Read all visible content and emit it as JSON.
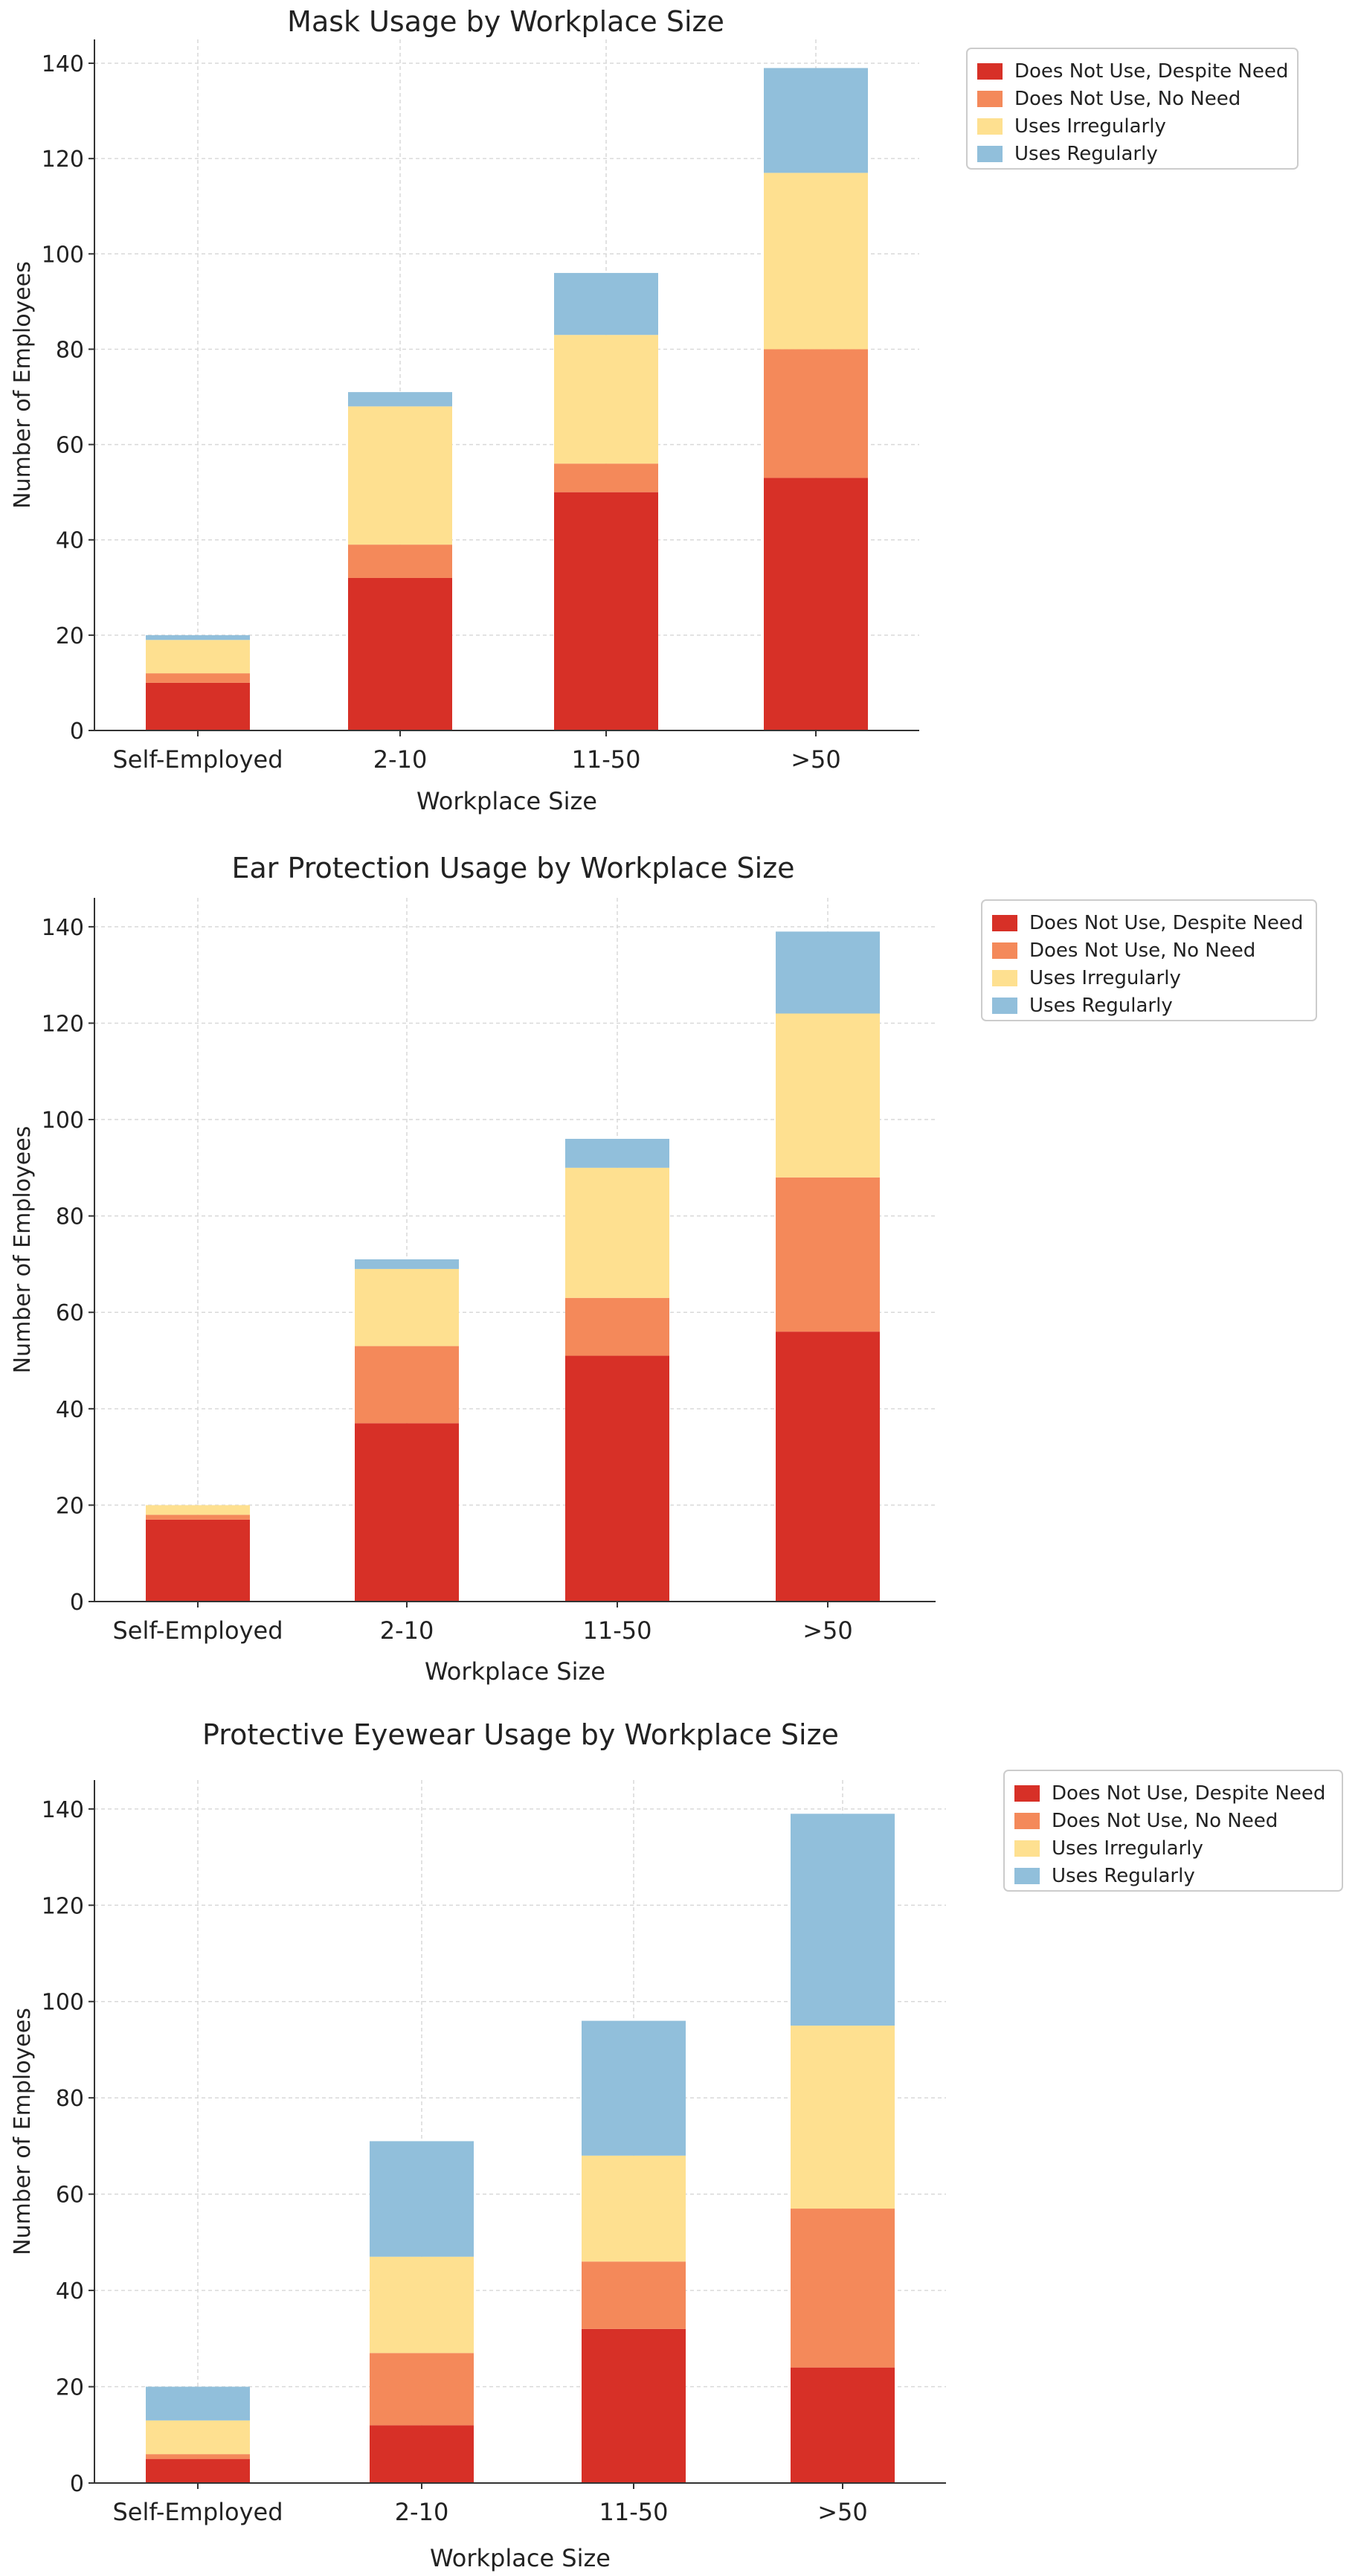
{
  "colors": {
    "does_not_use_despite_need": "#d73027",
    "does_not_use_no_need": "#f4895a",
    "uses_irregularly": "#fee090",
    "uses_regularly": "#91bfdb",
    "grid": "#d9d9d9",
    "axis": "#333333"
  },
  "chart_data": [
    {
      "type": "bar",
      "stacked": true,
      "title": "Mask Usage by Workplace Size",
      "xlabel": "Workplace Size",
      "ylabel": "Number of Employees",
      "categories": [
        "Self-Employed",
        "2-10",
        "11-50",
        ">50"
      ],
      "ylim": [
        0,
        145
      ],
      "yticks": [
        0,
        20,
        40,
        60,
        80,
        100,
        120,
        140
      ],
      "grid": true,
      "legend_position": "upper-right outside",
      "series": [
        {
          "name": "Does Not Use, Despite Need",
          "color_key": "does_not_use_despite_need",
          "values": [
            10,
            32,
            50,
            53
          ]
        },
        {
          "name": "Does Not Use, No Need",
          "color_key": "does_not_use_no_need",
          "values": [
            2,
            7,
            6,
            27
          ]
        },
        {
          "name": "Uses Irregularly",
          "color_key": "uses_irregularly",
          "values": [
            7,
            29,
            27,
            37
          ]
        },
        {
          "name": "Uses Regularly",
          "color_key": "uses_regularly",
          "values": [
            1,
            3,
            13,
            22
          ]
        }
      ]
    },
    {
      "type": "bar",
      "stacked": true,
      "title": "Ear Protection Usage by Workplace Size",
      "xlabel": "Workplace Size",
      "ylabel": "Number of Employees",
      "categories": [
        "Self-Employed",
        "2-10",
        "11-50",
        ">50"
      ],
      "ylim": [
        0,
        146
      ],
      "yticks": [
        0,
        20,
        40,
        60,
        80,
        100,
        120,
        140
      ],
      "grid": true,
      "legend_position": "upper-right outside",
      "series": [
        {
          "name": "Does Not Use, Despite Need",
          "color_key": "does_not_use_despite_need",
          "values": [
            17,
            37,
            51,
            56
          ]
        },
        {
          "name": "Does Not Use, No Need",
          "color_key": "does_not_use_no_need",
          "values": [
            1,
            16,
            12,
            32
          ]
        },
        {
          "name": "Uses Irregularly",
          "color_key": "uses_irregularly",
          "values": [
            2,
            16,
            27,
            34
          ]
        },
        {
          "name": "Uses Regularly",
          "color_key": "uses_regularly",
          "values": [
            0,
            2,
            6,
            17
          ]
        }
      ]
    },
    {
      "type": "bar",
      "stacked": true,
      "title": "Protective Eyewear Usage by Workplace Size",
      "xlabel": "Workplace Size",
      "ylabel": "Number of Employees",
      "categories": [
        "Self-Employed",
        "2-10",
        "11-50",
        ">50"
      ],
      "ylim": [
        0,
        146
      ],
      "yticks": [
        0,
        20,
        40,
        60,
        80,
        100,
        120,
        140
      ],
      "grid": true,
      "legend_position": "upper-right outside",
      "series": [
        {
          "name": "Does Not Use, Despite Need",
          "color_key": "does_not_use_despite_need",
          "values": [
            5,
            12,
            32,
            24
          ]
        },
        {
          "name": "Does Not Use, No Need",
          "color_key": "does_not_use_no_need",
          "values": [
            1,
            15,
            14,
            33
          ]
        },
        {
          "name": "Uses Irregularly",
          "color_key": "uses_irregularly",
          "values": [
            7,
            20,
            22,
            38
          ]
        },
        {
          "name": "Uses Regularly",
          "color_key": "uses_regularly",
          "values": [
            7,
            24,
            28,
            44
          ]
        }
      ]
    }
  ]
}
